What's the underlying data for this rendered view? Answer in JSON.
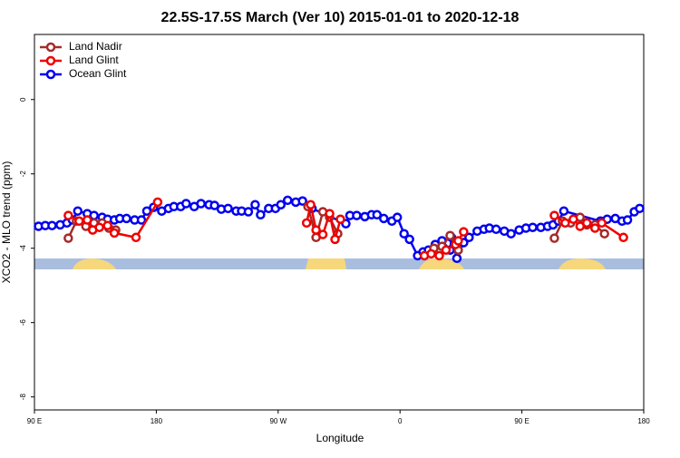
{
  "chart_data": {
    "type": "line",
    "title": "22.5S-17.5S March (Ver 10)   2015-01-01 to 2020-12-18",
    "x_label": "Longitude",
    "y_label": "XCO2 - MLO trend (ppm)",
    "xlim": [
      90,
      540
    ],
    "ylim": [
      -8.35,
      1.75
    ],
    "xticks": [
      {
        "value": 90,
        "label": "90 E"
      },
      {
        "value": 180,
        "label": "180"
      },
      {
        "value": 270,
        "label": "90 W"
      },
      {
        "value": 360,
        "label": "0"
      },
      {
        "value": 450,
        "label": "90 E"
      },
      {
        "value": 540,
        "label": "180"
      }
    ],
    "yticks": [
      0,
      -2,
      -4,
      -6,
      -8
    ],
    "legend": "top-left",
    "series": [
      {
        "name": "Land Nadir",
        "color": "#a52a2a",
        "x": [
          115,
          121,
          128,
          134,
          140,
          145,
          150,
          null,
          292,
          298,
          303,
          308,
          314,
          null,
          385,
          391,
          397,
          403,
          null,
          474,
          480,
          486,
          493,
          498,
          504,
          511
        ],
        "values": [
          -3.73,
          -3.27,
          -3.41,
          -3.32,
          -3.32,
          -3.46,
          -3.51,
          null,
          -2.88,
          -3.71,
          -3.02,
          -3.17,
          -3.61,
          null,
          -4.0,
          -3.95,
          -3.66,
          -4.05,
          null,
          -3.73,
          -3.27,
          -3.32,
          -3.17,
          -3.37,
          -3.37,
          -3.61
        ]
      },
      {
        "name": "Land Glint",
        "color": "#ee0000",
        "x": [
          115,
          123,
          129,
          133,
          138,
          144,
          149,
          165,
          181,
          null,
          291,
          294,
          298,
          303,
          308,
          312,
          316,
          null,
          378,
          383,
          389,
          394,
          401,
          403,
          407,
          null,
          474,
          482,
          488,
          493,
          498,
          504,
          509,
          525
        ],
        "values": [
          -3.12,
          -3.27,
          -3.24,
          -3.51,
          -3.44,
          -3.39,
          -3.59,
          -3.71,
          -2.76,
          null,
          -3.32,
          -2.83,
          -3.51,
          -3.63,
          -3.07,
          -3.76,
          -3.22,
          null,
          -4.2,
          -4.15,
          -4.2,
          -4.05,
          -3.9,
          -3.8,
          -3.56,
          null,
          -3.12,
          -3.32,
          -3.22,
          -3.41,
          -3.32,
          -3.46,
          -3.32,
          -3.71
        ]
      },
      {
        "name": "Ocean Glint",
        "color": "#0000ee",
        "x": [
          93,
          98,
          103,
          109,
          114,
          118,
          122,
          129,
          134,
          140,
          144,
          149,
          153,
          158,
          164,
          169,
          173,
          178,
          184,
          189,
          193,
          198,
          202,
          208,
          213,
          219,
          223,
          228,
          233,
          239,
          243,
          248,
          253,
          257,
          263,
          268,
          272,
          277,
          283,
          288,
          295,
          320,
          323,
          328,
          334,
          339,
          343,
          348,
          354,
          358,
          363,
          367,
          373,
          377,
          381,
          386,
          391,
          397,
          398,
          402,
          407,
          411,
          417,
          422,
          426,
          431,
          437,
          442,
          448,
          453,
          458,
          464,
          469,
          473,
          477,
          481,
          508,
          513,
          519,
          524,
          528,
          533,
          537
        ],
        "values": [
          -3.41,
          -3.39,
          -3.39,
          -3.37,
          -3.32,
          -3.24,
          -3.0,
          -3.07,
          -3.12,
          -3.17,
          -3.22,
          -3.24,
          -3.2,
          -3.2,
          -3.24,
          -3.24,
          -3.0,
          -2.9,
          -3.0,
          -2.93,
          -2.88,
          -2.88,
          -2.8,
          -2.88,
          -2.8,
          -2.83,
          -2.85,
          -2.95,
          -2.93,
          -3.0,
          -3.0,
          -3.02,
          -2.83,
          -3.1,
          -2.93,
          -2.93,
          -2.83,
          -2.71,
          -2.76,
          -2.73,
          -2.93,
          -3.34,
          -3.12,
          -3.12,
          -3.15,
          -3.1,
          -3.1,
          -3.2,
          -3.27,
          -3.17,
          -3.61,
          -3.76,
          -4.2,
          -4.1,
          -4.05,
          -3.9,
          -3.8,
          -4.05,
          -3.71,
          -4.27,
          -3.85,
          -3.71,
          -3.54,
          -3.49,
          -3.46,
          -3.49,
          -3.54,
          -3.61,
          -3.51,
          -3.46,
          -3.44,
          -3.44,
          -3.41,
          -3.37,
          -3.27,
          -3.0,
          -3.27,
          -3.22,
          -3.2,
          -3.27,
          -3.24,
          -3.02,
          -2.93
        ]
      }
    ]
  }
}
